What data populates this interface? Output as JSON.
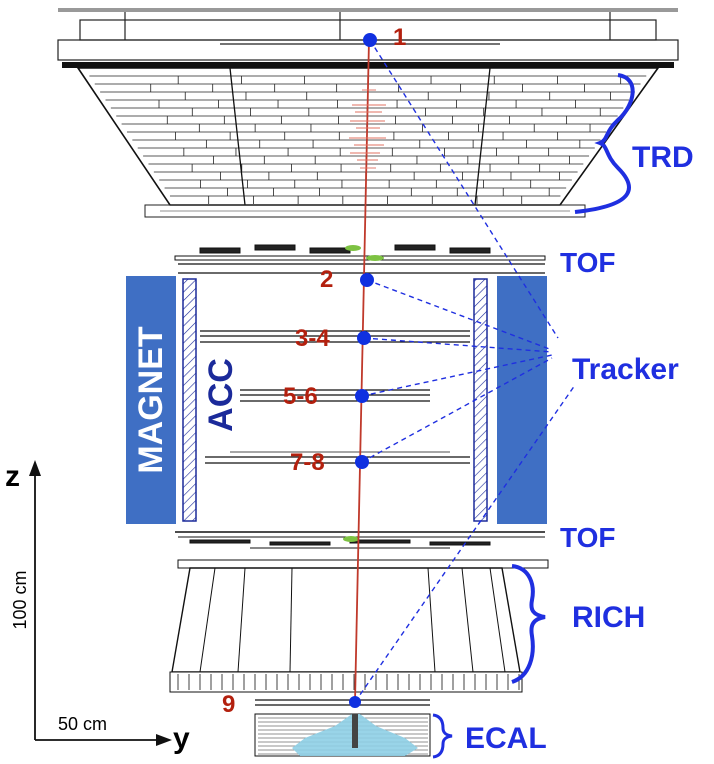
{
  "detectors": {
    "trd": "TRD",
    "tof_upper": "TOF",
    "tof_lower": "TOF",
    "tracker": "Tracker",
    "rich": "RICH",
    "ecal": "ECAL",
    "magnet": "MAGNET",
    "acc": "ACC"
  },
  "layers": [
    "1",
    "2",
    "3-4",
    "5-6",
    "7-8",
    "9"
  ],
  "axes": {
    "z_label": "z",
    "y_label": "y",
    "z_scale": "100 cm",
    "y_scale": "50 cm"
  },
  "colors": {
    "layer_label": "#b3200e",
    "detector_label": "#1f2fe0",
    "magnet_fill": "#3f6fc4",
    "acc_stroke": "#1b2a9a",
    "track": "#c0392b",
    "hit_point": "#1030e0",
    "tof_hit": "#7dc242",
    "ecal_shower": "#8ecfe6"
  }
}
